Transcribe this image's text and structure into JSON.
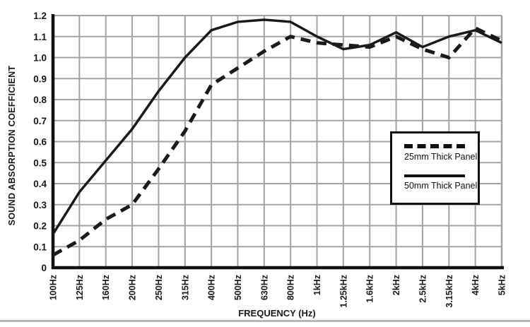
{
  "chart_data": {
    "type": "line",
    "title": "",
    "xlabel": "FREQUENCY (Hz)",
    "ylabel": "SOUND ABSORPTION COEFFICIENT",
    "categories": [
      "100Hz",
      "125Hz",
      "160Hz",
      "200Hz",
      "250Hz",
      "315Hz",
      "400Hz",
      "500Hz",
      "630Hz",
      "800Hz",
      "1kHz",
      "1.25kHz",
      "1.6kHz",
      "2kHz",
      "2.5kHz",
      "3.15kHz",
      "4kHz",
      "5kHz"
    ],
    "y_tick_labels": [
      "1.2",
      "1.1",
      "1.0",
      "0.9",
      "0.8",
      "0.7",
      "0.6",
      "0.5",
      "0.4",
      "0.3",
      "0.2",
      "0.1",
      "0"
    ],
    "ylim": [
      0,
      1.2
    ],
    "grid": true,
    "legend_position": "middle-right",
    "series": [
      {
        "name": "25mm Thick Panel",
        "style": "dashed",
        "values": [
          0.06,
          0.13,
          0.23,
          0.3,
          0.47,
          0.65,
          0.87,
          0.95,
          1.03,
          1.1,
          1.07,
          1.06,
          1.05,
          1.1,
          1.04,
          1.0,
          1.14,
          1.08
        ]
      },
      {
        "name": "50mm Thick Panel",
        "style": "solid",
        "values": [
          0.16,
          0.36,
          0.51,
          0.66,
          0.84,
          1.0,
          1.13,
          1.17,
          1.18,
          1.17,
          1.1,
          1.04,
          1.06,
          1.12,
          1.05,
          1.1,
          1.13,
          1.07
        ]
      }
    ],
    "colors": {
      "line": "#1a1a1a",
      "grid": "#a3a3a3",
      "axis": "#111111",
      "divider": "#b8b8b8"
    }
  }
}
